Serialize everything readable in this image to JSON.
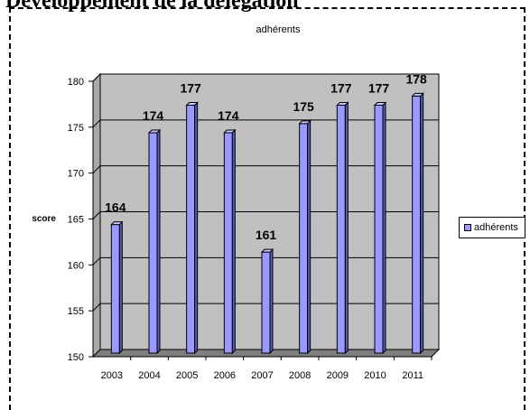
{
  "page": {
    "heading": "Développement de la délégation"
  },
  "chart_data": {
    "type": "bar",
    "title": "adhérents",
    "xlabel": "",
    "ylabel": "score",
    "categories": [
      "2003",
      "2004",
      "2005",
      "2006",
      "2007",
      "2008",
      "2009",
      "2010",
      "2011"
    ],
    "series": [
      {
        "name": "adhérents",
        "values": [
          164,
          174,
          177,
          174,
          161,
          175,
          177,
          177,
          178
        ]
      }
    ],
    "ylim": [
      150,
      180
    ],
    "yticks": [
      "150",
      "155",
      "160",
      "165",
      "170",
      "175",
      "180"
    ],
    "data_labels": [
      "164",
      "174",
      "177",
      "174",
      "161",
      "175",
      "177",
      "177",
      "178"
    ],
    "grid": true,
    "legend": "right",
    "colors": {
      "bar_front": "#9999ff",
      "bar_side": "#5a5ab8",
      "bar_top": "#c4c4ff",
      "plot_back": "#c0c0c0",
      "plot_floor": "#7f7f7f"
    }
  }
}
